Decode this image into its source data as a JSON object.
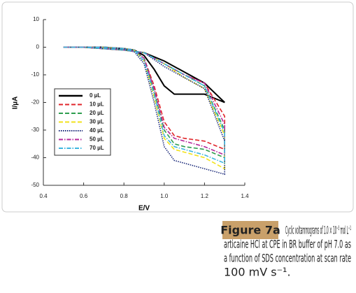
{
  "chart_data": {
    "type": "line",
    "xlabel": "E/V",
    "ylabel": "I/µA",
    "x": [
      0.5,
      0.6,
      0.7,
      0.8,
      0.85,
      0.9,
      0.95,
      1.0,
      1.05,
      1.1,
      1.2,
      1.3,
      1.3,
      1.2,
      1.1,
      1.0,
      0.9,
      0.8,
      0.7,
      0.6,
      0.5
    ],
    "series": [
      {
        "name": "0 µL",
        "color": "#000000",
        "style": "solid",
        "values": [
          0,
          0,
          0,
          -0.5,
          -1,
          -3,
          -8,
          -14,
          -17,
          -17,
          -17,
          -20,
          -20,
          -13,
          -9,
          -5,
          -2,
          -1,
          -0.5,
          0,
          0
        ]
      },
      {
        "name": "10 µL",
        "color": "#e0262b",
        "style": "dashed",
        "values": [
          0,
          0,
          0,
          -0.5,
          -1,
          -4,
          -14,
          -27,
          -32,
          -33,
          -34,
          -37,
          -25,
          -13,
          -10,
          -6,
          -2,
          -1,
          -0.5,
          0,
          0
        ]
      },
      {
        "name": "20 µL",
        "color": "#2e9e4f",
        "style": "dashed",
        "values": [
          0,
          0,
          0,
          -0.5,
          -1,
          -4,
          -16,
          -30,
          -35,
          -36,
          -37,
          -40,
          -30,
          -14,
          -10,
          -6,
          -2,
          -1,
          -0.5,
          0,
          0
        ]
      },
      {
        "name": "30 µL",
        "color": "#f2e21c",
        "style": "dashed",
        "values": [
          0,
          0,
          0,
          -0.5,
          -1,
          -5,
          -18,
          -33,
          -37,
          -38,
          -40,
          -44,
          -32,
          -15,
          -11,
          -6,
          -2,
          -1,
          -0.5,
          0,
          0
        ]
      },
      {
        "name": "40 µL",
        "color": "#1b2a7a",
        "style": "dotted",
        "values": [
          0,
          0,
          0,
          -0.5,
          -1.5,
          -6,
          -20,
          -36,
          -41,
          -42,
          -44,
          -46,
          -34,
          -15,
          -11,
          -7,
          -2,
          -1,
          -0.5,
          0,
          0
        ]
      },
      {
        "name": "50 µL",
        "color": "#b5299b",
        "style": "dashdot",
        "values": [
          0,
          0,
          0,
          -0.5,
          -1,
          -4,
          -15,
          -29,
          -33,
          -34,
          -36,
          -39,
          -28,
          -13,
          -10,
          -6,
          -2,
          -1,
          -0.5,
          0,
          0
        ]
      },
      {
        "name": "70 µL",
        "color": "#3cb6e0",
        "style": "dashdot",
        "values": [
          0,
          0,
          0,
          -0.5,
          -1,
          -5,
          -17,
          -32,
          -36,
          -37,
          -39,
          -42,
          -31,
          -14,
          -10,
          -6,
          -2,
          -1,
          -0.5,
          0,
          0
        ]
      }
    ],
    "xlim": [
      0.4,
      1.4
    ],
    "xticks": [
      0.4,
      0.6,
      0.8,
      {
        "value": 1.0,
        "label": "1.0"
      },
      1.2,
      1.4
    ],
    "ylim": [
      -50,
      10
    ],
    "yticks": [
      10,
      0,
      -10,
      -20,
      -30,
      -40,
      -50
    ],
    "legend": "upper left",
    "figure_label": "Figure 7a",
    "caption_lines": [
      "Cyclic voltammograms of 1.0 × 10⁻³ mol L⁻¹",
      "articaine HCl at CPE in BR buffer of pH 7.0 as",
      "a function of SDS concentration at scan rate",
      "100 mV s⁻¹."
    ]
  }
}
